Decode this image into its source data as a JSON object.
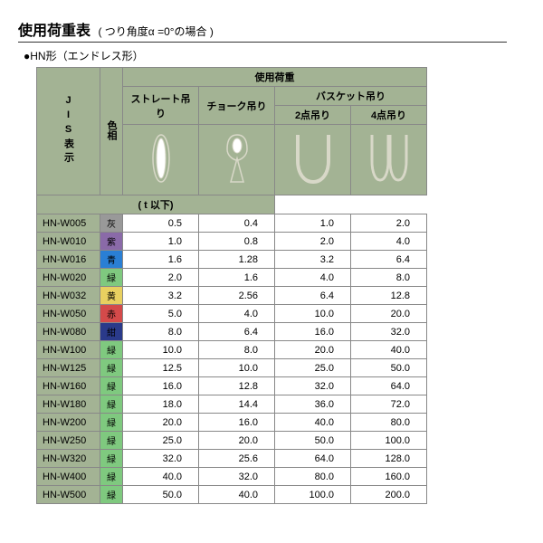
{
  "title": "使用荷重表",
  "subtitle": "( つり角度α =0°の場合 )",
  "type_label": "●HN形（エンドレス形）",
  "headers": {
    "jis": "JIS表示",
    "color": "色相",
    "load": "使用荷重",
    "straight": "ストレート吊り",
    "choke": "チョーク吊り",
    "basket": "バスケット吊り",
    "pt2": "2点吊り",
    "pt4": "4点吊り",
    "unit": "( t 以下)"
  },
  "svg": {
    "stroke": "#d8d8c8",
    "fill": "#a3b394"
  },
  "color_swatches": {
    "灰": "#999999",
    "紫": "#8a6aa8",
    "青": "#2a7fd4",
    "緑": "#7fc97f",
    "黄": "#e8d060",
    "赤": "#d44a4a",
    "紺": "#2a3a8a"
  },
  "rows": [
    {
      "jis": "HN-W005",
      "color": "灰",
      "v": [
        "0.5",
        "0.4",
        "1.0",
        "2.0"
      ]
    },
    {
      "jis": "HN-W010",
      "color": "紫",
      "v": [
        "1.0",
        "0.8",
        "2.0",
        "4.0"
      ]
    },
    {
      "jis": "HN-W016",
      "color": "青",
      "v": [
        "1.6",
        "1.28",
        "3.2",
        "6.4"
      ]
    },
    {
      "jis": "HN-W020",
      "color": "緑",
      "v": [
        "2.0",
        "1.6",
        "4.0",
        "8.0"
      ]
    },
    {
      "jis": "HN-W032",
      "color": "黄",
      "v": [
        "3.2",
        "2.56",
        "6.4",
        "12.8"
      ]
    },
    {
      "jis": "HN-W050",
      "color": "赤",
      "v": [
        "5.0",
        "4.0",
        "10.0",
        "20.0"
      ]
    },
    {
      "jis": "HN-W080",
      "color": "紺",
      "v": [
        "8.0",
        "6.4",
        "16.0",
        "32.0"
      ]
    },
    {
      "jis": "HN-W100",
      "color": "緑",
      "v": [
        "10.0",
        "8.0",
        "20.0",
        "40.0"
      ]
    },
    {
      "jis": "HN-W125",
      "color": "緑",
      "v": [
        "12.5",
        "10.0",
        "25.0",
        "50.0"
      ]
    },
    {
      "jis": "HN-W160",
      "color": "緑",
      "v": [
        "16.0",
        "12.8",
        "32.0",
        "64.0"
      ]
    },
    {
      "jis": "HN-W180",
      "color": "緑",
      "v": [
        "18.0",
        "14.4",
        "36.0",
        "72.0"
      ]
    },
    {
      "jis": "HN-W200",
      "color": "緑",
      "v": [
        "20.0",
        "16.0",
        "40.0",
        "80.0"
      ]
    },
    {
      "jis": "HN-W250",
      "color": "緑",
      "v": [
        "25.0",
        "20.0",
        "50.0",
        "100.0"
      ]
    },
    {
      "jis": "HN-W320",
      "color": "緑",
      "v": [
        "32.0",
        "25.6",
        "64.0",
        "128.0"
      ]
    },
    {
      "jis": "HN-W400",
      "color": "緑",
      "v": [
        "40.0",
        "32.0",
        "80.0",
        "160.0"
      ]
    },
    {
      "jis": "HN-W500",
      "color": "緑",
      "v": [
        "50.0",
        "40.0",
        "100.0",
        "200.0"
      ]
    }
  ]
}
